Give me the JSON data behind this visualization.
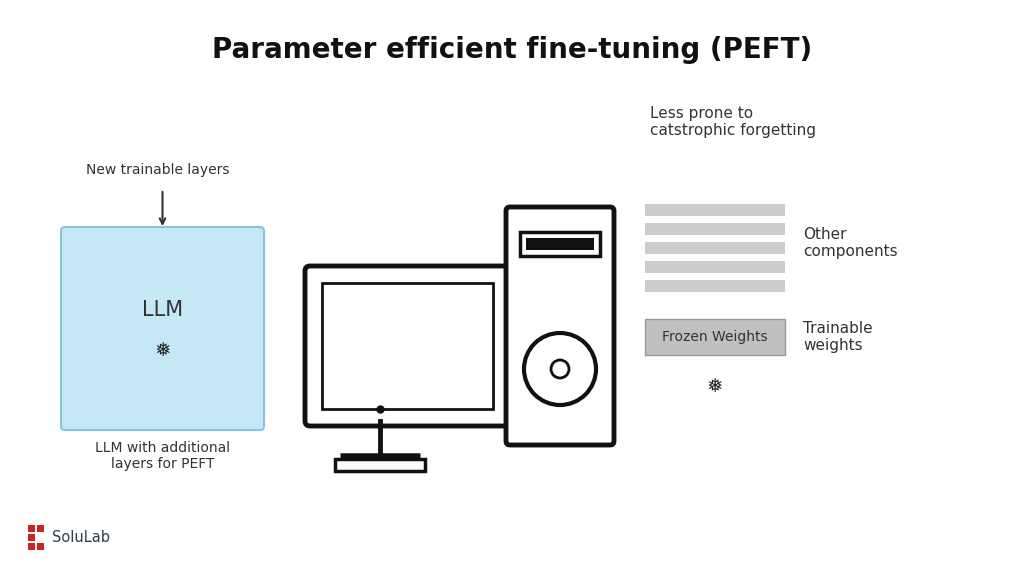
{
  "title": "Parameter efficient fine-tuning (PEFT)",
  "title_fontsize": 20,
  "background_color": "#ffffff",
  "llm_box_color": "#c5e8f7",
  "llm_box_border": "#88c4de",
  "llm_text": "LLM",
  "new_layers_label": "New trainable layers",
  "llm_caption": "LLM with additional\nlayers for PEFT",
  "less_prone_text": "Less prone to\ncatstrophic forgetting",
  "other_components_text": "Other\ncomponents",
  "trainable_weights_text": "Trainable\nweights",
  "frozen_weights_text": "Frozen Weights",
  "gray_stripe_color": "#cccccc",
  "frozen_box_color": "#c0c0c0",
  "solulab_text": "SoluLab",
  "solulab_color": "#2d3e50",
  "solulab_red": "#cc2222"
}
